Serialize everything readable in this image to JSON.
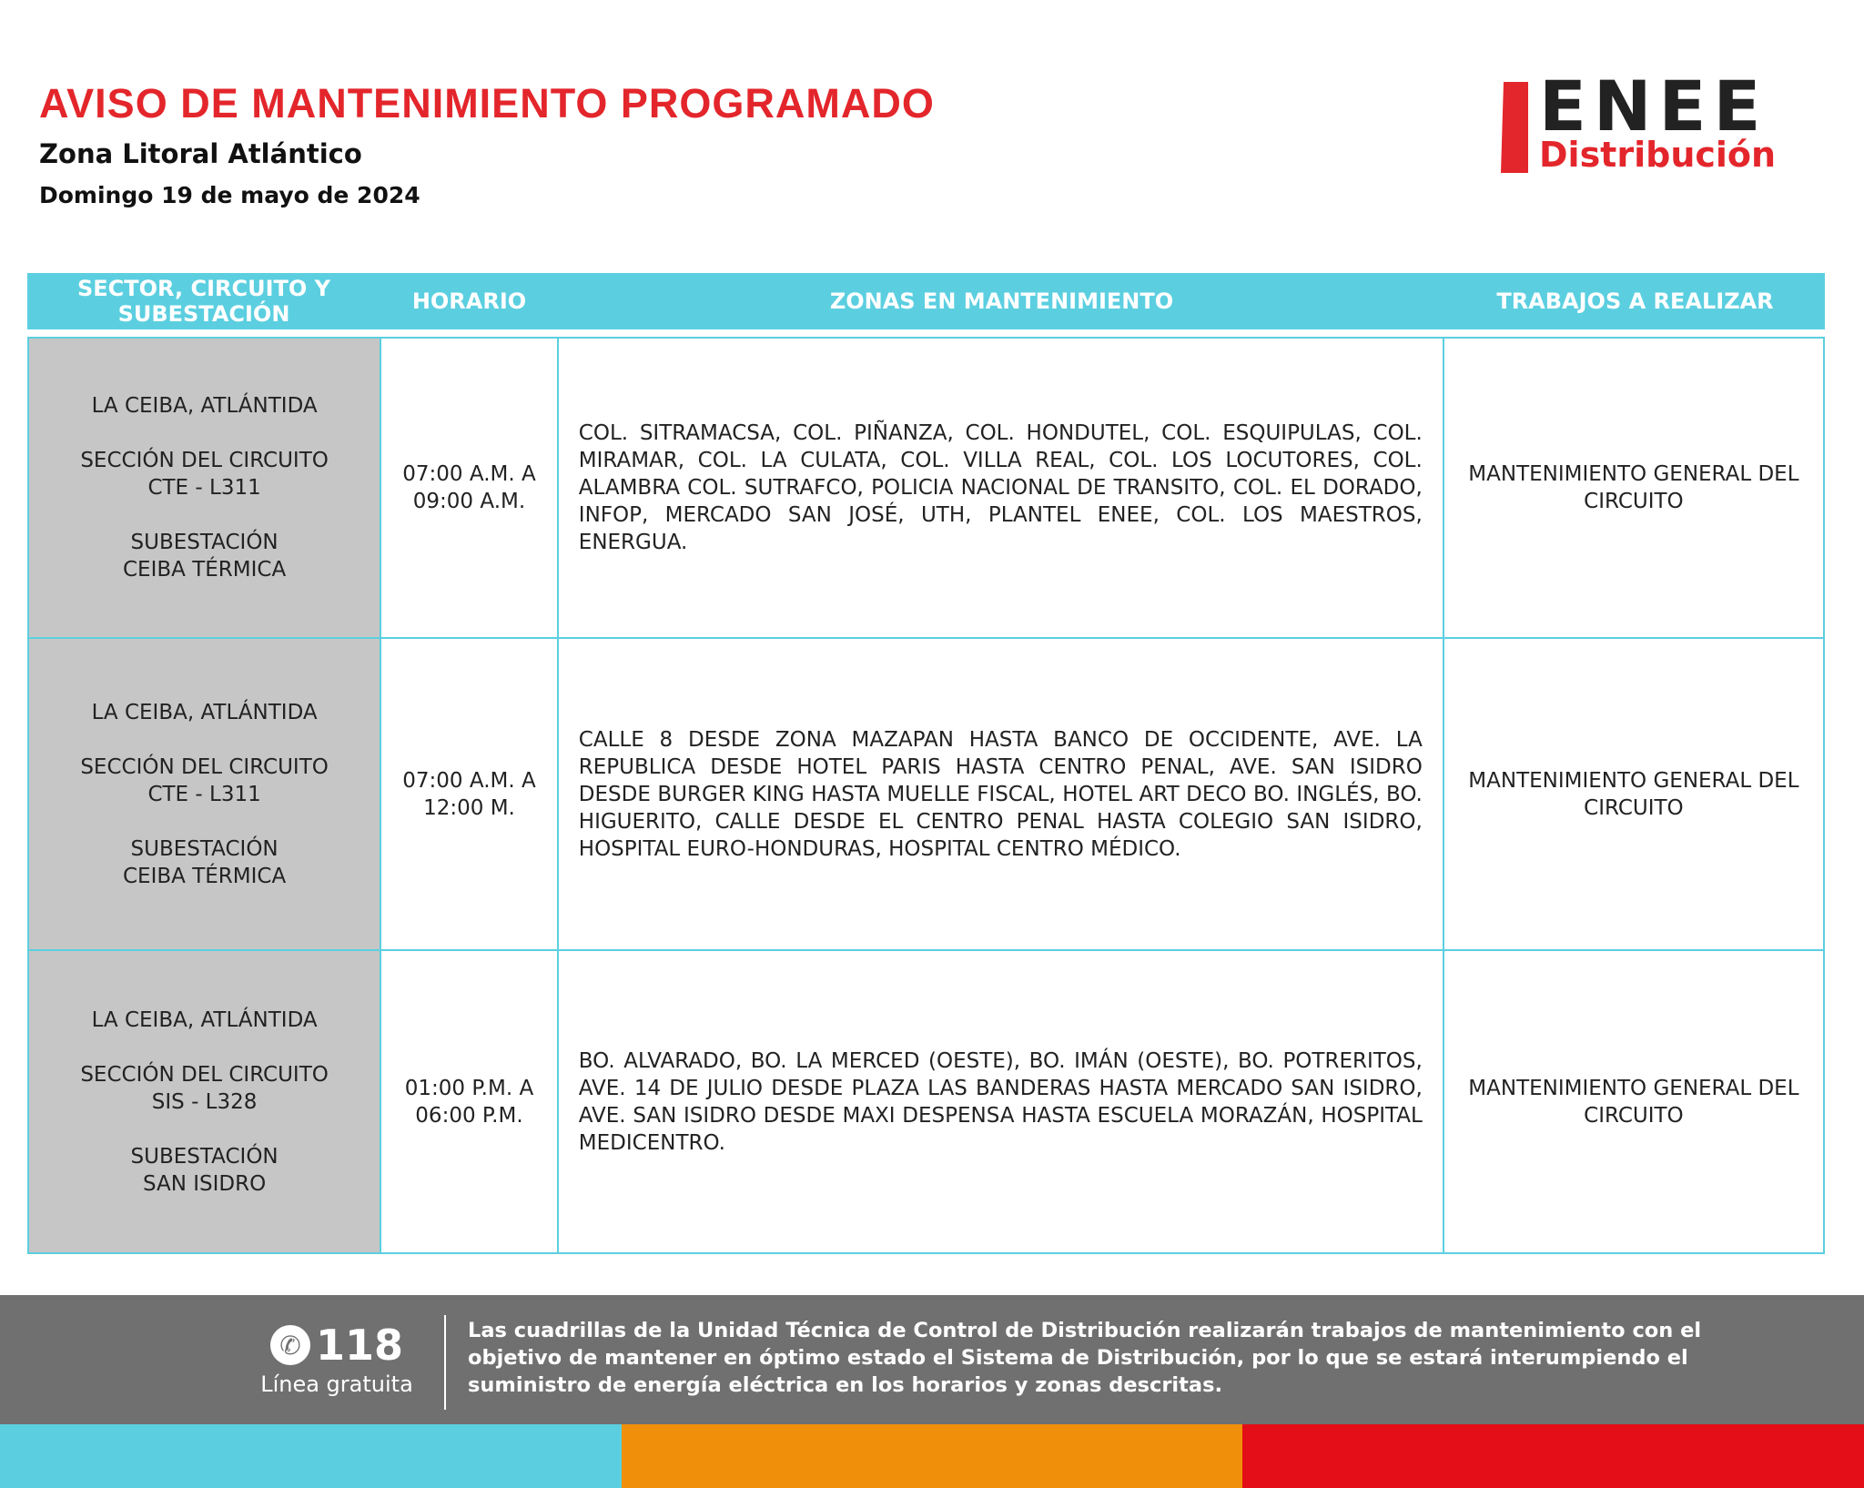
{
  "header": {
    "title": "AVISO DE MANTENIMIENTO PROGRAMADO",
    "zone": "Zona Litoral Atlántico",
    "date": "Domingo 19 de mayo de 2024"
  },
  "logo": {
    "name": "ENEE",
    "sub": "Distribución"
  },
  "table": {
    "columns": [
      "SECTOR, CIRCUITO Y SUBESTACIÓN",
      "HORARIO",
      "ZONAS EN MANTENIMIENTO",
      "TRABAJOS A REALIZAR"
    ],
    "rows": [
      {
        "sector": "LA CEIBA, ATLÁNTIDA",
        "circuit_label": "SECCIÓN DEL CIRCUITO",
        "circuit": "CTE - L311",
        "substation_label": "SUBESTACIÓN",
        "substation": "CEIBA TÉRMICA",
        "schedule_start": "07:00 A.M. A",
        "schedule_end": "09:00 A.M.",
        "zones": "COL. SITRAMACSA, COL. PIÑANZA, COL. HONDUTEL, COL. ESQUIPULAS, COL. MIRAMAR, COL. LA CULATA, COL. VILLA REAL, COL. LOS LOCUTORES, COL. ALAMBRA COL. SUTRAFCO, POLICIA NACIONAL DE TRANSITO, COL. EL DORADO, INFOP, MERCADO SAN JOSÉ, UTH, PLANTEL ENEE, COL. LOS MAESTROS, ENERGUA.",
        "work": "MANTENIMIENTO GENERAL DEL CIRCUITO"
      },
      {
        "sector": "LA CEIBA, ATLÁNTIDA",
        "circuit_label": "SECCIÓN DEL CIRCUITO",
        "circuit": "CTE - L311",
        "substation_label": "SUBESTACIÓN",
        "substation": "CEIBA TÉRMICA",
        "schedule_start": "07:00 A.M. A",
        "schedule_end": "12:00 M.",
        "zones": "CALLE 8 DESDE ZONA MAZAPAN HASTA BANCO DE OCCIDENTE, AVE. LA REPUBLICA DESDE HOTEL PARIS HASTA CENTRO PENAL, AVE. SAN ISIDRO DESDE BURGER KING HASTA MUELLE FISCAL, HOTEL ART DECO BO. INGLÉS, BO. HIGUERITO, CALLE DESDE EL CENTRO PENAL HASTA COLEGIO SAN ISIDRO, HOSPITAL EURO-HONDURAS, HOSPITAL CENTRO MÉDICO.",
        "work": "MANTENIMIENTO GENERAL DEL CIRCUITO"
      },
      {
        "sector": "LA CEIBA, ATLÁNTIDA",
        "circuit_label": "SECCIÓN DEL CIRCUITO",
        "circuit": "SIS - L328",
        "substation_label": "SUBESTACIÓN",
        "substation": "SAN ISIDRO",
        "schedule_start": "01:00 P.M. A",
        "schedule_end": "06:00 P.M.",
        "zones": "BO. ALVARADO, BO. LA MERCED (OESTE), BO. IMÁN (OESTE), BO. POTRERITOS, AVE. 14 DE JULIO DESDE PLAZA LAS BANDERAS HASTA MERCADO SAN ISIDRO, AVE. SAN ISIDRO DESDE MAXI DESPENSA HASTA ESCUELA MORAZÁN, HOSPITAL MEDICENTRO.",
        "work": "MANTENIMIENTO GENERAL DEL CIRCUITO"
      }
    ]
  },
  "footer": {
    "phone_icon": "phone-icon",
    "phone": "118",
    "phone_label": "Línea gratuita",
    "text": "Las cuadrillas de la Unidad Técnica de Control de Distribución realizarán trabajos de mantenimiento con el objetivo de mantener en óptimo estado el Sistema de Distribución, por lo que se estará interumpiendo el suministro de energía eléctrica en los horarios y zonas descritas."
  },
  "colors": {
    "accent_red": "#e3262b",
    "header_cyan": "#5bcfe0",
    "footer_grey": "#707070",
    "bar_cyan": "#5bcfe0",
    "bar_orange": "#f0900a",
    "bar_red": "#e30e17"
  }
}
